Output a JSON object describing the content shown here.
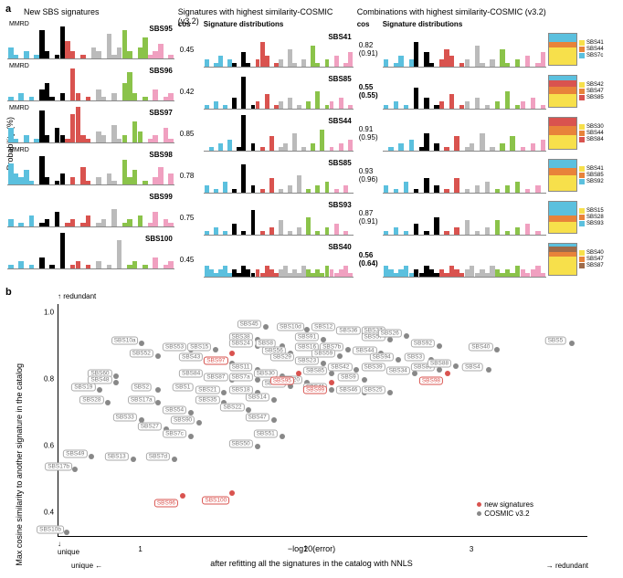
{
  "labels": {
    "a": "a",
    "b": "b",
    "ylabel_a": "Probability (%)",
    "new_header": "New SBS signatures",
    "mid_header": "Signatures with highest similarity-COSMIC (v3.2)",
    "right_header": "Combinations with highest similarity-COSMIC (v3.2)",
    "cos": "cos",
    "sigdist": "Signature distributions",
    "mmrd": "MMRD",
    "scatter_ylabel": "Max cosine similarity to another signature in the catalog",
    "scatter_xlabel": "after refitting all the signatures in the catalog with NNLS",
    "xaxis": "−log10(error)",
    "redundant": "redundant",
    "unique": "unique",
    "leg_new": "new signatures",
    "leg_cosmic": "COSMIC v3.2"
  },
  "colors": {
    "c1": "#5bc0de",
    "c2": "#000000",
    "c3": "#d9534f",
    "c4": "#bbbbbb",
    "c5": "#8bc34a",
    "c6": "#f0a0c0",
    "yellow": "#f7e04b",
    "orange": "#e8833a",
    "red": "#d9534f",
    "cyan": "#5bc0de",
    "brown": "#9e6b4a",
    "grey": "#888888",
    "new_sig": "#d9534f",
    "cosmic": "#888888"
  },
  "new_sigs": [
    {
      "id": "SBS95",
      "mmrd": true,
      "bars": [
        3,
        1,
        0,
        2,
        0,
        1,
        8,
        2,
        0,
        1,
        9,
        5,
        2,
        0,
        1,
        0,
        3,
        2,
        0,
        7,
        1,
        3,
        8,
        2,
        0,
        3,
        6,
        1,
        2,
        4,
        0,
        1
      ]
    },
    {
      "id": "SBS96",
      "mmrd": true,
      "bars": [
        1,
        0,
        2,
        0,
        1,
        0,
        3,
        5,
        1,
        0,
        2,
        0,
        9,
        2,
        0,
        1,
        0,
        3,
        1,
        0,
        2,
        0,
        5,
        8,
        2,
        0,
        1,
        0,
        3,
        0,
        1,
        2
      ]
    },
    {
      "id": "SBS97",
      "mmrd": true,
      "bars": [
        4,
        1,
        0,
        2,
        0,
        1,
        9,
        2,
        0,
        4,
        2,
        1,
        8,
        10,
        2,
        1,
        0,
        3,
        2,
        0,
        5,
        1,
        2,
        0,
        6,
        3,
        0,
        1,
        2,
        0,
        4,
        1
      ]
    },
    {
      "id": "SBS98",
      "mmrd": true,
      "bars": [
        6,
        3,
        2,
        4,
        1,
        0,
        8,
        2,
        0,
        1,
        3,
        0,
        2,
        0,
        5,
        1,
        0,
        2,
        0,
        3,
        1,
        0,
        7,
        2,
        4,
        0,
        1,
        0,
        2,
        5,
        0,
        3
      ]
    },
    {
      "id": "SBS99",
      "mmrd": false,
      "bars": [
        2,
        0,
        1,
        0,
        3,
        0,
        1,
        2,
        0,
        4,
        0,
        1,
        2,
        0,
        1,
        3,
        0,
        1,
        2,
        0,
        5,
        0,
        1,
        2,
        0,
        3,
        0,
        1,
        4,
        0,
        2,
        1
      ]
    },
    {
      "id": "SBS100",
      "mmrd": false,
      "bars": [
        1,
        0,
        2,
        0,
        1,
        0,
        3,
        0,
        1,
        0,
        10,
        0,
        1,
        2,
        0,
        1,
        0,
        2,
        0,
        1,
        0,
        8,
        0,
        1,
        2,
        0,
        1,
        0,
        3,
        0,
        1,
        2
      ]
    }
  ],
  "mid_sigs": [
    {
      "cos": "0.45",
      "id": "SBS41",
      "bars": [
        2,
        0,
        1,
        3,
        0,
        2,
        1,
        0,
        4,
        1,
        0,
        2,
        7,
        3,
        0,
        1,
        2,
        0,
        5,
        1,
        0,
        2,
        0,
        6,
        1,
        0,
        2,
        0,
        3,
        0,
        1,
        4
      ]
    },
    {
      "cos": "0.42",
      "id": "SBS85",
      "bars": [
        1,
        0,
        2,
        0,
        1,
        0,
        3,
        0,
        9,
        0,
        1,
        2,
        0,
        4,
        0,
        1,
        2,
        0,
        3,
        0,
        1,
        0,
        2,
        0,
        5,
        0,
        1,
        2,
        0,
        3,
        0,
        1
      ]
    },
    {
      "cos": "0.85",
      "id": "SBS44",
      "bars": [
        0,
        1,
        0,
        2,
        0,
        3,
        0,
        1,
        10,
        0,
        2,
        0,
        1,
        0,
        4,
        0,
        1,
        2,
        0,
        5,
        0,
        1,
        0,
        2,
        0,
        6,
        0,
        1,
        0,
        2,
        0,
        3
      ]
    },
    {
      "cos": "0.78",
      "id": "SBS85",
      "bars": [
        2,
        0,
        1,
        0,
        3,
        0,
        1,
        0,
        8,
        0,
        2,
        0,
        1,
        0,
        4,
        0,
        1,
        0,
        2,
        0,
        5,
        0,
        1,
        0,
        2,
        0,
        3,
        0,
        1,
        0,
        2,
        0
      ]
    },
    {
      "cos": "0.75",
      "id": "SBS93",
      "bars": [
        1,
        0,
        2,
        0,
        1,
        0,
        3,
        0,
        1,
        0,
        7,
        0,
        1,
        0,
        2,
        0,
        4,
        0,
        1,
        0,
        2,
        0,
        5,
        0,
        1,
        0,
        2,
        0,
        3,
        0,
        1,
        0
      ]
    },
    {
      "cos": "0.45",
      "id": "SBS40",
      "bars": [
        3,
        2,
        1,
        2,
        3,
        1,
        2,
        1,
        3,
        2,
        1,
        2,
        1,
        3,
        2,
        1,
        2,
        3,
        1,
        2,
        1,
        3,
        2,
        1,
        2,
        1,
        3,
        2,
        1,
        2,
        3,
        1
      ]
    }
  ],
  "right_sigs": [
    {
      "cos": "0.82",
      "cos2": "(0.91)",
      "bars": [
        2,
        0,
        1,
        3,
        0,
        2,
        7,
        0,
        4,
        1,
        0,
        2,
        5,
        3,
        0,
        1,
        2,
        0,
        6,
        1,
        0,
        2,
        0,
        5,
        1,
        0,
        2,
        0,
        3,
        0,
        1,
        4
      ],
      "stack": [
        {
          "c": "yellow",
          "h": 55
        },
        {
          "c": "orange",
          "h": 20
        },
        {
          "c": "cyan",
          "h": 25
        }
      ],
      "legend": [
        "SBS41",
        "SBS44",
        "SBS7c"
      ]
    },
    {
      "cos": "0.55",
      "cos2": "(0.55)",
      "bold": true,
      "bars": [
        1,
        0,
        2,
        0,
        1,
        0,
        6,
        0,
        3,
        0,
        1,
        2,
        0,
        4,
        0,
        1,
        2,
        0,
        3,
        0,
        1,
        0,
        2,
        0,
        5,
        0,
        1,
        2,
        0,
        3,
        0,
        1
      ],
      "stack": [
        {
          "c": "yellow",
          "h": 40
        },
        {
          "c": "orange",
          "h": 25
        },
        {
          "c": "red",
          "h": 20
        },
        {
          "c": "cyan",
          "h": 15
        }
      ],
      "legend": [
        "SBS42",
        "SBS47",
        "SBS85"
      ]
    },
    {
      "cos": "0.91",
      "cos2": "(0.95)",
      "bars": [
        0,
        1,
        0,
        2,
        0,
        3,
        0,
        1,
        5,
        0,
        2,
        0,
        1,
        0,
        4,
        0,
        1,
        2,
        0,
        5,
        0,
        1,
        0,
        2,
        0,
        4,
        0,
        1,
        0,
        2,
        0,
        3
      ],
      "stack": [
        {
          "c": "yellow",
          "h": 45
        },
        {
          "c": "orange",
          "h": 30
        },
        {
          "c": "red",
          "h": 25
        }
      ],
      "legend": [
        "SBS30",
        "SBS44",
        "SBS84"
      ]
    },
    {
      "cos": "0.93",
      "cos2": "(0.96)",
      "bars": [
        2,
        0,
        1,
        0,
        3,
        0,
        1,
        0,
        4,
        0,
        2,
        0,
        1,
        0,
        4,
        0,
        1,
        0,
        2,
        0,
        3,
        0,
        1,
        0,
        2,
        0,
        3,
        0,
        1,
        0,
        2,
        0
      ],
      "stack": [
        {
          "c": "yellow",
          "h": 50
        },
        {
          "c": "orange",
          "h": 25
        },
        {
          "c": "cyan",
          "h": 25
        }
      ],
      "legend": [
        "SBS41",
        "SBS85",
        "SBS92"
      ]
    },
    {
      "cos": "0.87",
      "cos2": "(0.91)",
      "bars": [
        1,
        0,
        2,
        0,
        1,
        0,
        3,
        0,
        1,
        0,
        5,
        0,
        1,
        0,
        2,
        0,
        4,
        0,
        1,
        0,
        2,
        0,
        4,
        0,
        1,
        0,
        2,
        0,
        3,
        0,
        1,
        0
      ],
      "stack": [
        {
          "c": "yellow",
          "h": 35
        },
        {
          "c": "orange",
          "h": 20
        },
        {
          "c": "cyan",
          "h": 45
        }
      ],
      "legend": [
        "SBS15",
        "SBS28",
        "SBS93"
      ]
    },
    {
      "cos": "0.56",
      "cos2": "(0.64)",
      "bold": true,
      "bars": [
        3,
        2,
        1,
        2,
        3,
        1,
        2,
        1,
        3,
        2,
        1,
        2,
        1,
        3,
        2,
        1,
        2,
        3,
        1,
        2,
        1,
        3,
        2,
        1,
        2,
        1,
        3,
        2,
        1,
        2,
        3,
        1
      ],
      "stack": [
        {
          "c": "yellow",
          "h": 60
        },
        {
          "c": "orange",
          "h": 15
        },
        {
          "c": "brown",
          "h": 15
        },
        {
          "c": "cyan",
          "h": 10
        }
      ],
      "legend": [
        "SBS40",
        "SBS47",
        "SBS87"
      ]
    }
  ],
  "scatter": {
    "xmin": 0.5,
    "xmax": 3.7,
    "ymin": 0.3,
    "ymax": 1.0,
    "xticks": [
      1,
      2,
      3
    ],
    "yticks": [
      0.4,
      0.6,
      0.8,
      1.0
    ],
    "new_pts": [
      {
        "x": 1.55,
        "y": 0.85,
        "l": "SBS97"
      },
      {
        "x": 1.95,
        "y": 0.79,
        "l": "SBS95"
      },
      {
        "x": 2.15,
        "y": 0.76,
        "l": "SBS99"
      },
      {
        "x": 2.85,
        "y": 0.79,
        "l": "SBS98"
      },
      {
        "x": 1.25,
        "y": 0.42,
        "l": "SBS96"
      },
      {
        "x": 1.55,
        "y": 0.43,
        "l": "SBS100"
      }
    ],
    "cosmic_pts": [
      {
        "x": 1.0,
        "y": 0.88,
        "l": "SBS10a"
      },
      {
        "x": 1.1,
        "y": 0.84,
        "l": "SBS52"
      },
      {
        "x": 0.85,
        "y": 0.78,
        "l": "SBS60"
      },
      {
        "x": 0.85,
        "y": 0.76,
        "l": "SBS48"
      },
      {
        "x": 0.75,
        "y": 0.74,
        "l": "SBS19"
      },
      {
        "x": 1.1,
        "y": 0.74,
        "l": "SBS2"
      },
      {
        "x": 1.35,
        "y": 0.74,
        "l": "SBS1"
      },
      {
        "x": 0.8,
        "y": 0.7,
        "l": "SBS28"
      },
      {
        "x": 1.1,
        "y": 0.7,
        "l": "SBS17a"
      },
      {
        "x": 1.3,
        "y": 0.67,
        "l": "SBS54"
      },
      {
        "x": 1.0,
        "y": 0.65,
        "l": "SBS33"
      },
      {
        "x": 1.15,
        "y": 0.62,
        "l": "SBS27"
      },
      {
        "x": 0.7,
        "y": 0.54,
        "l": "SBS49"
      },
      {
        "x": 0.95,
        "y": 0.53,
        "l": "SBS13"
      },
      {
        "x": 0.6,
        "y": 0.5,
        "l": "SBS17b"
      },
      {
        "x": 0.55,
        "y": 0.31,
        "l": "SBS10b"
      },
      {
        "x": 1.3,
        "y": 0.86,
        "l": "SBS53"
      },
      {
        "x": 1.45,
        "y": 0.86,
        "l": "SBS15"
      },
      {
        "x": 1.4,
        "y": 0.83,
        "l": "SBS43"
      },
      {
        "x": 1.55,
        "y": 0.82,
        "l": "SBS32"
      },
      {
        "x": 1.4,
        "y": 0.78,
        "l": "SBS84"
      },
      {
        "x": 1.55,
        "y": 0.77,
        "l": "SBS87"
      },
      {
        "x": 1.5,
        "y": 0.73,
        "l": "SBS21"
      },
      {
        "x": 1.5,
        "y": 0.7,
        "l": "SBS35"
      },
      {
        "x": 1.35,
        "y": 0.64,
        "l": "SBS90"
      },
      {
        "x": 1.3,
        "y": 0.6,
        "l": "SBS7c"
      },
      {
        "x": 1.2,
        "y": 0.53,
        "l": "SBS7d"
      },
      {
        "x": 1.75,
        "y": 0.93,
        "l": "SBS45"
      },
      {
        "x": 1.7,
        "y": 0.89,
        "l": "SBS38"
      },
      {
        "x": 1.7,
        "y": 0.87,
        "l": "SBS24"
      },
      {
        "x": 1.85,
        "y": 0.87,
        "l": "SBS8"
      },
      {
        "x": 1.9,
        "y": 0.85,
        "l": "SBS56"
      },
      {
        "x": 1.95,
        "y": 0.83,
        "l": "SBS29"
      },
      {
        "x": 1.7,
        "y": 0.8,
        "l": "SBS11"
      },
      {
        "x": 1.7,
        "y": 0.77,
        "l": "SBS7a"
      },
      {
        "x": 1.85,
        "y": 0.78,
        "l": "SBS30"
      },
      {
        "x": 1.9,
        "y": 0.75,
        "l": "SBS31"
      },
      {
        "x": 1.7,
        "y": 0.73,
        "l": "SBS18"
      },
      {
        "x": 1.8,
        "y": 0.71,
        "l": "SBS14"
      },
      {
        "x": 1.65,
        "y": 0.68,
        "l": "SBS22"
      },
      {
        "x": 1.8,
        "y": 0.65,
        "l": "SBS47"
      },
      {
        "x": 1.85,
        "y": 0.6,
        "l": "SBS51"
      },
      {
        "x": 1.7,
        "y": 0.57,
        "l": "SBS50"
      },
      {
        "x": 2.0,
        "y": 0.92,
        "l": "SBS10d"
      },
      {
        "x": 2.1,
        "y": 0.89,
        "l": "SBS91"
      },
      {
        "x": 2.2,
        "y": 0.92,
        "l": "SBS12"
      },
      {
        "x": 2.35,
        "y": 0.91,
        "l": "SBS36"
      },
      {
        "x": 2.1,
        "y": 0.86,
        "l": "SBS16"
      },
      {
        "x": 2.25,
        "y": 0.86,
        "l": "SBS7b"
      },
      {
        "x": 2.2,
        "y": 0.84,
        "l": "SBS59"
      },
      {
        "x": 2.1,
        "y": 0.82,
        "l": "SBS23"
      },
      {
        "x": 2.15,
        "y": 0.79,
        "l": "SBS85"
      },
      {
        "x": 2.0,
        "y": 0.76,
        "l": "SBS20"
      },
      {
        "x": 2.15,
        "y": 0.74,
        "l": "SBS41"
      },
      {
        "x": 2.3,
        "y": 0.8,
        "l": "SBS42"
      },
      {
        "x": 2.35,
        "y": 0.77,
        "l": "SBS9"
      },
      {
        "x": 2.35,
        "y": 0.73,
        "l": "SBS46"
      },
      {
        "x": 2.5,
        "y": 0.91,
        "l": "SBS37"
      },
      {
        "x": 2.5,
        "y": 0.89,
        "l": "SBS57"
      },
      {
        "x": 2.6,
        "y": 0.9,
        "l": "SBS26"
      },
      {
        "x": 2.45,
        "y": 0.85,
        "l": "SBS44"
      },
      {
        "x": 2.55,
        "y": 0.83,
        "l": "SBS94"
      },
      {
        "x": 2.5,
        "y": 0.8,
        "l": "SBS39"
      },
      {
        "x": 2.65,
        "y": 0.79,
        "l": "SBS34"
      },
      {
        "x": 2.5,
        "y": 0.73,
        "l": "SBS25"
      },
      {
        "x": 2.8,
        "y": 0.87,
        "l": "SBS92"
      },
      {
        "x": 2.75,
        "y": 0.83,
        "l": "SBS3"
      },
      {
        "x": 2.8,
        "y": 0.8,
        "l": "SBS89"
      },
      {
        "x": 2.9,
        "y": 0.81,
        "l": "SBS88"
      },
      {
        "x": 3.15,
        "y": 0.86,
        "l": "SBS40"
      },
      {
        "x": 3.1,
        "y": 0.8,
        "l": "SBS4"
      },
      {
        "x": 3.6,
        "y": 0.88,
        "l": "SBS5"
      }
    ]
  }
}
